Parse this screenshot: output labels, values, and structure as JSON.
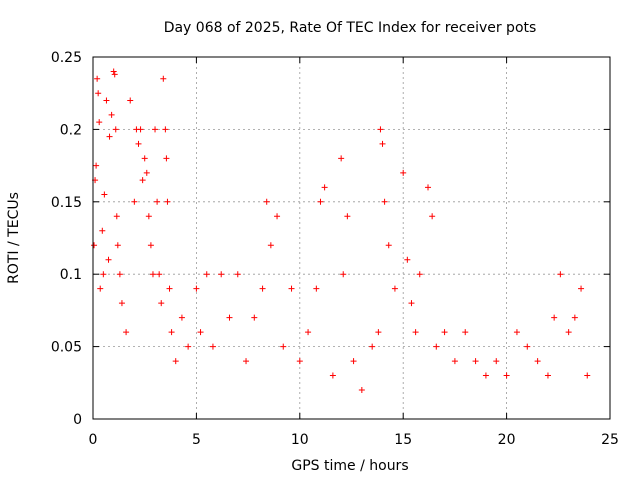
{
  "chart_data": {
    "type": "scatter",
    "title": "Day 068 of 2025, Rate Of TEC Index for receiver pots",
    "xlabel": "GPS time / hours",
    "ylabel": "ROTI / TECUs",
    "xlim": [
      0,
      25
    ],
    "ylim": [
      0,
      0.25
    ],
    "x_ticks": [
      0,
      5,
      10,
      15,
      20,
      25
    ],
    "x_tick_labels": [
      "0",
      "5",
      "10",
      "15",
      "20",
      "25"
    ],
    "y_ticks": [
      0,
      0.05,
      0.1,
      0.15,
      0.2,
      0.25
    ],
    "y_tick_labels": [
      "0",
      "0.05",
      "0.1",
      "0.15",
      "0.2",
      "0.25"
    ],
    "grid": true,
    "marker": "+",
    "color": "#ff0000",
    "series": [
      {
        "name": "ROTI",
        "x": [
          0.05,
          0.1,
          0.15,
          0.2,
          0.25,
          0.3,
          0.35,
          0.45,
          0.5,
          0.55,
          0.65,
          0.75,
          0.8,
          0.9,
          1.0,
          1.05,
          1.1,
          1.15,
          1.2,
          1.3,
          1.4,
          1.6,
          1.8,
          2.0,
          2.1,
          2.2,
          2.3,
          2.4,
          2.5,
          2.6,
          2.7,
          2.8,
          2.9,
          3.0,
          3.1,
          3.2,
          3.3,
          3.4,
          3.5,
          3.55,
          3.6,
          3.7,
          3.8,
          4.0,
          4.3,
          4.6,
          5.0,
          5.2,
          5.5,
          5.8,
          6.2,
          6.6,
          7.0,
          7.4,
          7.8,
          8.2,
          8.4,
          8.6,
          8.9,
          9.2,
          9.6,
          10.0,
          10.4,
          10.8,
          11.0,
          11.2,
          11.6,
          12.0,
          12.1,
          12.3,
          12.6,
          13.0,
          13.5,
          13.8,
          13.9,
          14.0,
          14.1,
          14.3,
          14.6,
          15.0,
          15.2,
          15.4,
          15.6,
          15.8,
          16.2,
          16.4,
          16.6,
          17.0,
          17.5,
          18.0,
          18.5,
          19.0,
          19.5,
          20.0,
          20.5,
          21.0,
          21.5,
          22.0,
          22.3,
          22.6,
          23.0,
          23.3,
          23.6,
          23.9
        ],
        "y": [
          0.12,
          0.165,
          0.175,
          0.235,
          0.225,
          0.205,
          0.09,
          0.13,
          0.1,
          0.155,
          0.22,
          0.11,
          0.195,
          0.21,
          0.24,
          0.238,
          0.2,
          0.14,
          0.12,
          0.1,
          0.08,
          0.06,
          0.22,
          0.15,
          0.2,
          0.19,
          0.2,
          0.165,
          0.18,
          0.17,
          0.14,
          0.12,
          0.1,
          0.2,
          0.15,
          0.1,
          0.08,
          0.235,
          0.2,
          0.18,
          0.15,
          0.09,
          0.06,
          0.04,
          0.07,
          0.05,
          0.09,
          0.06,
          0.1,
          0.05,
          0.1,
          0.07,
          0.1,
          0.04,
          0.07,
          0.09,
          0.15,
          0.12,
          0.14,
          0.05,
          0.09,
          0.04,
          0.06,
          0.09,
          0.15,
          0.16,
          0.03,
          0.18,
          0.1,
          0.14,
          0.04,
          0.02,
          0.05,
          0.06,
          0.2,
          0.19,
          0.15,
          0.12,
          0.09,
          0.17,
          0.11,
          0.08,
          0.06,
          0.1,
          0.16,
          0.14,
          0.05,
          0.06,
          0.04,
          0.06,
          0.04,
          0.03,
          0.04,
          0.03,
          0.06,
          0.05,
          0.04,
          0.03,
          0.07,
          0.1,
          0.06,
          0.07,
          0.09,
          0.03
        ]
      }
    ]
  }
}
